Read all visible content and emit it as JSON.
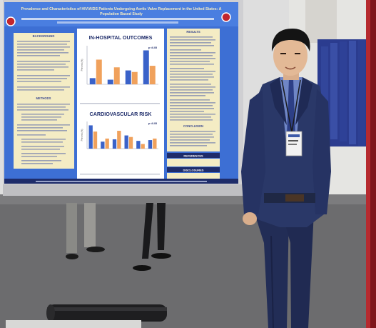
{
  "poster": {
    "title": "Prevalence and Characteristics of HIV/AIDS Patients Undergoing Aortic Valve Replacement in the United States: A Population Based Study",
    "section_titles": {
      "background": "BACKGROUND",
      "methods": "METHODS",
      "results": "RESULTS",
      "conclusion": "CONCLUSION",
      "references": "REFERENCES",
      "disclosures": "DISCLOSURES"
    },
    "chart1": {
      "title": "IN-HOSPITAL OUTCOMES",
      "pvalue": "p <0.05",
      "ylabel": "Percent (%)"
    },
    "chart2": {
      "title": "CARDIOVASCULAR RISK",
      "pvalue": "p <0.05",
      "ylabel": "Percent (%)"
    }
  },
  "chart_data": [
    {
      "type": "bar",
      "title": "IN-HOSPITAL OUTCOMES",
      "categories": [
        "1",
        "2",
        "3",
        "4"
      ],
      "series": [
        {
          "values": [
            4,
            3,
            9,
            22
          ]
        },
        {
          "values": [
            16,
            11,
            8,
            12
          ]
        }
      ],
      "ylim": [
        0,
        25
      ]
    },
    {
      "type": "bar",
      "title": "CARDIOVASCULAR RISK",
      "categories": [
        "1",
        "2",
        "3",
        "4",
        "5",
        "6"
      ],
      "series": [
        {
          "values": [
            60,
            18,
            24,
            34,
            20,
            22
          ]
        },
        {
          "values": [
            44,
            26,
            46,
            30,
            12,
            26
          ]
        }
      ],
      "ylim": [
        0,
        70
      ]
    }
  ],
  "colors": {
    "poster_blue": "#3d6fd4",
    "panel_yellow": "#f4ecc4",
    "bar_blue": "#3a62c9",
    "bar_orange": "#f0a15c",
    "suit": "#24305d",
    "carpet": "#6c6c6e",
    "wall": "#dddedd"
  }
}
